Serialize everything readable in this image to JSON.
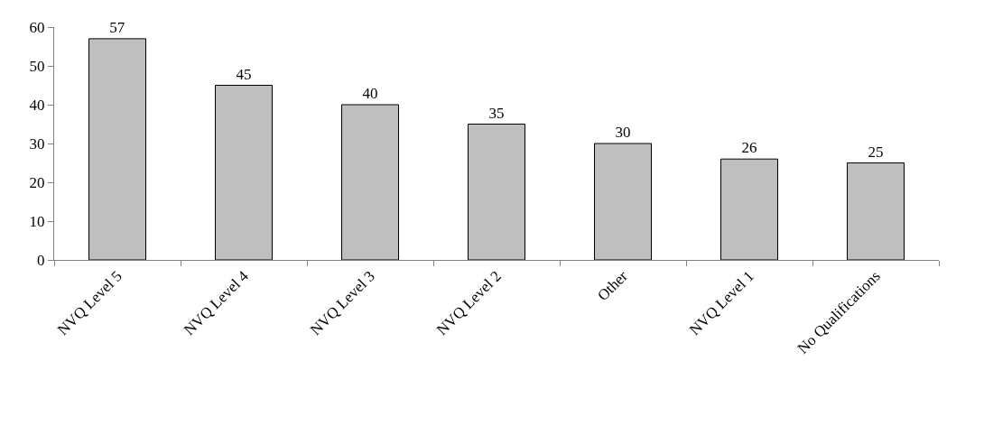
{
  "chart_data": {
    "type": "bar",
    "categories": [
      "NVQ Level 5",
      "NVQ Level 4",
      "NVQ Level 3",
      "NVQ Level 2",
      "Other",
      "NVQ Level 1",
      "No Qualifications"
    ],
    "values": [
      57,
      45,
      40,
      35,
      30,
      26,
      25
    ],
    "color": "#bfbfbf",
    "ylim": [
      0,
      60
    ],
    "yticks": [
      0,
      10,
      20,
      30,
      40,
      50,
      60
    ],
    "data_labels": true
  }
}
